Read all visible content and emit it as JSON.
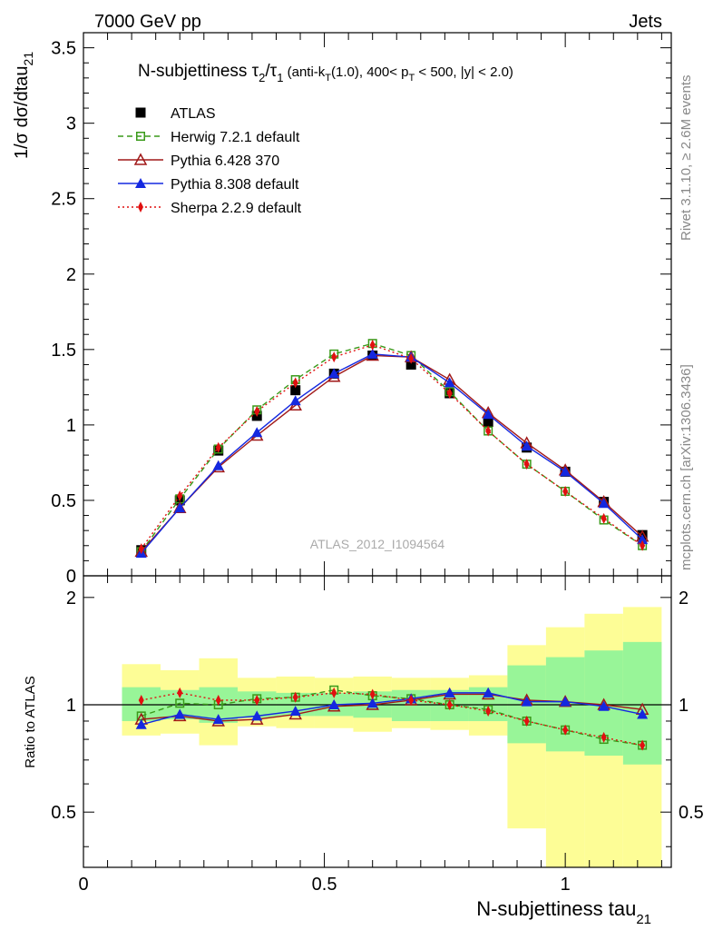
{
  "header": {
    "left": "7000 GeV pp",
    "right": "Jets"
  },
  "side_labels": {
    "rivet": "Rivet 3.1.10, ≥ 2.6M events",
    "mcplots": "mcplots.cern.ch [arXiv:1306.3436]"
  },
  "chart_data": [
    {
      "type": "line",
      "panel": "main",
      "title_main": "N-subjettiness τ",
      "title_sub2": "2",
      "title_slash": "/τ",
      "title_sub1": "1",
      "title_paren1": " (anti-k",
      "title_subT": "T",
      "title_paren2": "(1.0), 400< p",
      "title_subT2": "T",
      "title_paren3": " < 500, |y| < 2.0)",
      "ylabel_main": "1/σ dσ/dtau",
      "ylabel_sub": "21",
      "watermark": "ATLAS_2012_I1094564",
      "xlim": [
        0,
        1.22
      ],
      "ylim": [
        0,
        3.6
      ],
      "yticks": [
        0,
        0.5,
        1,
        1.5,
        2,
        2.5,
        3,
        3.5
      ],
      "ytick_labels": [
        "0",
        "0.5",
        "1",
        "1.5",
        "2",
        "2.5",
        "3",
        "3.5"
      ],
      "x": [
        0.12,
        0.2,
        0.28,
        0.36,
        0.44,
        0.52,
        0.6,
        0.68,
        0.76,
        0.84,
        0.92,
        1.0,
        1.08,
        1.16
      ],
      "series": [
        {
          "name": "ATLAS",
          "color": "#000000",
          "marker": "square-filled",
          "line": "none",
          "values": [
            0.17,
            0.5,
            0.83,
            1.06,
            1.23,
            1.34,
            1.46,
            1.4,
            1.21,
            1.02,
            0.85,
            0.69,
            0.49,
            0.27
          ]
        },
        {
          "name": "Herwig 7.2.1 default",
          "color": "#3a9a1a",
          "marker": "square-open",
          "line": "dashed",
          "values": [
            0.16,
            0.51,
            0.84,
            1.1,
            1.3,
            1.47,
            1.54,
            1.46,
            1.22,
            0.96,
            0.74,
            0.56,
            0.37,
            0.2
          ]
        },
        {
          "name": "Pythia 6.428 370",
          "color": "#a01818",
          "marker": "triangle-open",
          "line": "solid",
          "values": [
            0.16,
            0.45,
            0.72,
            0.93,
            1.13,
            1.32,
            1.46,
            1.45,
            1.3,
            1.08,
            0.88,
            0.7,
            0.49,
            0.26
          ]
        },
        {
          "name": "Pythia 8.308 default",
          "color": "#1428e0",
          "marker": "triangle-filled",
          "line": "solid",
          "values": [
            0.15,
            0.45,
            0.73,
            0.95,
            1.16,
            1.34,
            1.47,
            1.45,
            1.28,
            1.07,
            0.86,
            0.69,
            0.48,
            0.24
          ]
        },
        {
          "name": "Sherpa 2.2.9 default",
          "color": "#e01010",
          "marker": "diamond-filled",
          "line": "dotted",
          "values": [
            0.18,
            0.53,
            0.85,
            1.09,
            1.28,
            1.45,
            1.53,
            1.44,
            1.21,
            0.96,
            0.74,
            0.56,
            0.38,
            0.2
          ]
        }
      ]
    },
    {
      "type": "line",
      "panel": "ratio",
      "ylabel": "Ratio to ATLAS",
      "xlabel_main": "N-subjettiness tau",
      "xlabel_sub": "21",
      "xlim": [
        0,
        1.22
      ],
      "ylim": [
        0.35,
        2.3
      ],
      "xticks": [
        0,
        0.5,
        1
      ],
      "xtick_labels": [
        "0",
        "0.5",
        "1"
      ],
      "yticks": [
        0.5,
        1,
        2
      ],
      "ytick_labels": [
        "0.5",
        "1",
        "2"
      ],
      "bin_edges": [
        0.08,
        0.16,
        0.24,
        0.32,
        0.4,
        0.48,
        0.56,
        0.64,
        0.72,
        0.8,
        0.88,
        0.96,
        1.04,
        1.12,
        1.2
      ],
      "band_green": [
        [
          0.9,
          1.12
        ],
        [
          0.91,
          1.1
        ],
        [
          0.89,
          1.12
        ],
        [
          0.92,
          1.09
        ],
        [
          0.93,
          1.08
        ],
        [
          0.93,
          1.08
        ],
        [
          0.92,
          1.09
        ],
        [
          0.9,
          1.1
        ],
        [
          0.9,
          1.1
        ],
        [
          0.9,
          1.12
        ],
        [
          0.78,
          1.29
        ],
        [
          0.74,
          1.36
        ],
        [
          0.72,
          1.42
        ],
        [
          0.68,
          1.5
        ]
      ],
      "band_yellow": [
        [
          0.82,
          1.3
        ],
        [
          0.83,
          1.25
        ],
        [
          0.77,
          1.35
        ],
        [
          0.87,
          1.19
        ],
        [
          0.86,
          1.2
        ],
        [
          0.86,
          1.19
        ],
        [
          0.84,
          1.2
        ],
        [
          0.86,
          1.19
        ],
        [
          0.85,
          1.19
        ],
        [
          0.82,
          1.21
        ],
        [
          0.45,
          1.47
        ],
        [
          0.35,
          1.65
        ],
        [
          0.35,
          1.8
        ],
        [
          0.35,
          1.88
        ]
      ],
      "x": [
        0.12,
        0.2,
        0.28,
        0.36,
        0.44,
        0.52,
        0.6,
        0.68,
        0.76,
        0.84,
        0.92,
        1.0,
        1.08,
        1.16
      ],
      "series": [
        {
          "name": "Herwig 7.2.1 default",
          "color": "#3a9a1a",
          "marker": "square-open",
          "line": "dashed",
          "values": [
            0.93,
            1.01,
            1.0,
            1.04,
            1.05,
            1.1,
            1.06,
            1.04,
            1.0,
            0.97,
            0.9,
            0.85,
            0.8,
            0.77
          ]
        },
        {
          "name": "Pythia 6.428 370",
          "color": "#a01818",
          "marker": "triangle-open",
          "line": "solid",
          "values": [
            0.91,
            0.93,
            0.9,
            0.91,
            0.94,
            0.99,
            1.0,
            1.03,
            1.07,
            1.07,
            1.03,
            1.02,
            1.0,
            0.97
          ]
        },
        {
          "name": "Pythia 8.308 default",
          "color": "#1428e0",
          "marker": "triangle-filled",
          "line": "solid",
          "values": [
            0.88,
            0.94,
            0.91,
            0.93,
            0.96,
            1.0,
            1.01,
            1.04,
            1.08,
            1.08,
            1.02,
            1.02,
            0.99,
            0.94
          ]
        },
        {
          "name": "Sherpa 2.2.9 default",
          "color": "#e01010",
          "marker": "diamond-filled",
          "line": "dotted",
          "values": [
            1.03,
            1.08,
            1.03,
            1.03,
            1.05,
            1.08,
            1.07,
            1.03,
            1.0,
            0.96,
            0.9,
            0.85,
            0.81,
            0.77
          ]
        }
      ]
    }
  ]
}
